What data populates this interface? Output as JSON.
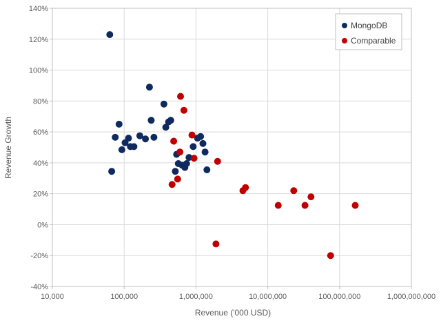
{
  "chart_data": {
    "type": "scatter",
    "title": "",
    "xlabel": "Revenue ('000 USD)",
    "ylabel": "Revenue Growth",
    "x_scale": "log",
    "xlim": [
      10000,
      1000000000
    ],
    "ylim": [
      -40,
      140
    ],
    "x_ticks": [
      10000,
      100000,
      1000000,
      10000000,
      100000000,
      1000000000
    ],
    "x_tick_labels": [
      "10,000",
      "100,000",
      "1,000,000",
      "10,000,000",
      "100,000,000",
      "1,000,000,000"
    ],
    "y_ticks": [
      -40,
      -20,
      0,
      20,
      40,
      60,
      80,
      100,
      120,
      140
    ],
    "y_tick_labels": [
      "-40%",
      "-20%",
      "0%",
      "20%",
      "40%",
      "60%",
      "80%",
      "100%",
      "120%",
      "140%"
    ],
    "grid": {
      "horizontal": true,
      "vertical": true
    },
    "legend": {
      "position": "top-right"
    },
    "series": [
      {
        "name": "MongoDB",
        "color": "#0e2a5e",
        "points": [
          [
            63000,
            123
          ],
          [
            67000,
            34.5
          ],
          [
            75000,
            56.5
          ],
          [
            85000,
            65
          ],
          [
            93000,
            48.5
          ],
          [
            103000,
            53
          ],
          [
            115000,
            56
          ],
          [
            122000,
            50.5
          ],
          [
            137000,
            50.5
          ],
          [
            165000,
            57.5
          ],
          [
            198000,
            55.5
          ],
          [
            225000,
            89
          ],
          [
            238000,
            67.5
          ],
          [
            260000,
            56.5
          ],
          [
            358000,
            78
          ],
          [
            380000,
            63
          ],
          [
            415000,
            66.5
          ],
          [
            445000,
            67.5
          ],
          [
            515000,
            34.5
          ],
          [
            538000,
            45.5
          ],
          [
            568000,
            39.5
          ],
          [
            640000,
            38.5
          ],
          [
            700000,
            37
          ],
          [
            740000,
            39.5
          ],
          [
            800000,
            43.5
          ],
          [
            915000,
            50.5
          ],
          [
            1050000,
            56
          ],
          [
            1160000,
            57
          ],
          [
            1250000,
            52.5
          ],
          [
            1340000,
            47
          ],
          [
            1420000,
            35.5
          ]
        ]
      },
      {
        "name": "Comparable",
        "color": "#c00000",
        "points": [
          [
            465000,
            26
          ],
          [
            490000,
            54
          ],
          [
            555000,
            29.5
          ],
          [
            598000,
            47
          ],
          [
            610000,
            83
          ],
          [
            680000,
            74
          ],
          [
            880000,
            58
          ],
          [
            940000,
            43
          ],
          [
            1900000,
            -12.5
          ],
          [
            2000000,
            41
          ],
          [
            4500000,
            22
          ],
          [
            4900000,
            24
          ],
          [
            14000000,
            12.5
          ],
          [
            23000000,
            22
          ],
          [
            33000000,
            12.5
          ],
          [
            40000000,
            18
          ],
          [
            75000000,
            -20
          ],
          [
            165000000,
            12.5
          ]
        ]
      }
    ]
  }
}
